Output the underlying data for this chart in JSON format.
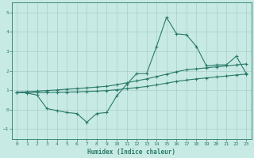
{
  "xlabel": "Humidex (Indice chaleur)",
  "x": [
    0,
    1,
    2,
    3,
    4,
    5,
    6,
    7,
    8,
    9,
    10,
    11,
    12,
    13,
    14,
    15,
    16,
    17,
    18,
    19,
    20,
    21,
    22,
    23
  ],
  "y_main": [
    0.9,
    0.85,
    0.75,
    0.05,
    -0.05,
    -0.15,
    -0.2,
    -0.65,
    -0.2,
    -0.15,
    0.7,
    1.3,
    1.85,
    1.85,
    3.25,
    4.75,
    3.9,
    3.85,
    3.25,
    2.25,
    2.3,
    2.3,
    2.75,
    1.85
  ],
  "y_upper": [
    0.9,
    0.92,
    0.95,
    0.98,
    1.01,
    1.05,
    1.08,
    1.12,
    1.16,
    1.2,
    1.28,
    1.38,
    1.48,
    1.58,
    1.7,
    1.82,
    1.95,
    2.05,
    2.1,
    2.15,
    2.2,
    2.25,
    2.3,
    2.35
  ],
  "y_lower": [
    0.88,
    0.88,
    0.88,
    0.88,
    0.89,
    0.9,
    0.91,
    0.93,
    0.95,
    0.98,
    1.02,
    1.08,
    1.13,
    1.19,
    1.27,
    1.36,
    1.45,
    1.52,
    1.58,
    1.63,
    1.68,
    1.73,
    1.78,
    1.83
  ],
  "line_color": "#2a7a6a",
  "bg_color": "#c8eae4",
  "grid_color": "#a8cfc8",
  "ylim": [
    -1.5,
    5.5
  ],
  "xlim": [
    -0.5,
    23.5
  ],
  "yticks": [
    -1,
    0,
    1,
    2,
    3,
    4,
    5
  ],
  "xticks": [
    0,
    1,
    2,
    3,
    4,
    5,
    6,
    7,
    8,
    9,
    10,
    11,
    12,
    13,
    14,
    15,
    16,
    17,
    18,
    19,
    20,
    21,
    22,
    23
  ]
}
